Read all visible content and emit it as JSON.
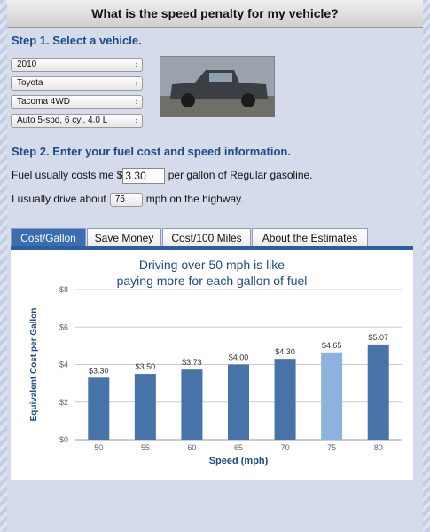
{
  "header": {
    "title": "What is the speed penalty for my vehicle?"
  },
  "step1": {
    "title": "Step 1. Select a vehicle.",
    "selects": [
      "2010",
      "Toyota",
      "Tacoma 4WD",
      "Auto 5-spd, 6 cyl, 4.0 L"
    ]
  },
  "step2": {
    "title": "Step 2. Enter your fuel cost and speed information.",
    "fuel_prefix": "Fuel usually costs me $",
    "fuel_value": "3.30",
    "fuel_mid": "per gallon of",
    "fuel_type": "Regular gasoline.",
    "speed_prefix": "I usually drive about",
    "speed_value": "75",
    "speed_suffix": "mph on the highway."
  },
  "tabs": [
    "Cost/Gallon",
    "Save Money",
    "Cost/100 Miles",
    "About the Estimates"
  ],
  "chart_data": {
    "type": "bar",
    "title": [
      "Driving over 50 mph is like",
      "paying more for each gallon of fuel"
    ],
    "x_label": "Speed (mph)",
    "y_label": "Equivalent Cost per Gallon",
    "categories": [
      "50",
      "55",
      "60",
      "65",
      "70",
      "75",
      "80"
    ],
    "values": [
      3.3,
      3.5,
      3.73,
      4.0,
      4.3,
      4.65,
      5.07
    ],
    "value_labels": [
      "$3.30",
      "$3.50",
      "$3.73",
      "$4.00",
      "$4.30",
      "$4.65",
      "$5.07"
    ],
    "colors": [
      "#4873a8",
      "#4873a8",
      "#4873a8",
      "#4873a8",
      "#4873a8",
      "#8db2dd",
      "#4873a8"
    ],
    "ylim": [
      0,
      8
    ],
    "yticks": [
      {
        "value": 0,
        "label": "$0"
      },
      {
        "value": 2,
        "label": "$2"
      },
      {
        "value": 4,
        "label": "$4"
      },
      {
        "value": 6,
        "label": "$6"
      },
      {
        "value": 8,
        "label": "$8"
      }
    ],
    "grid": true
  }
}
